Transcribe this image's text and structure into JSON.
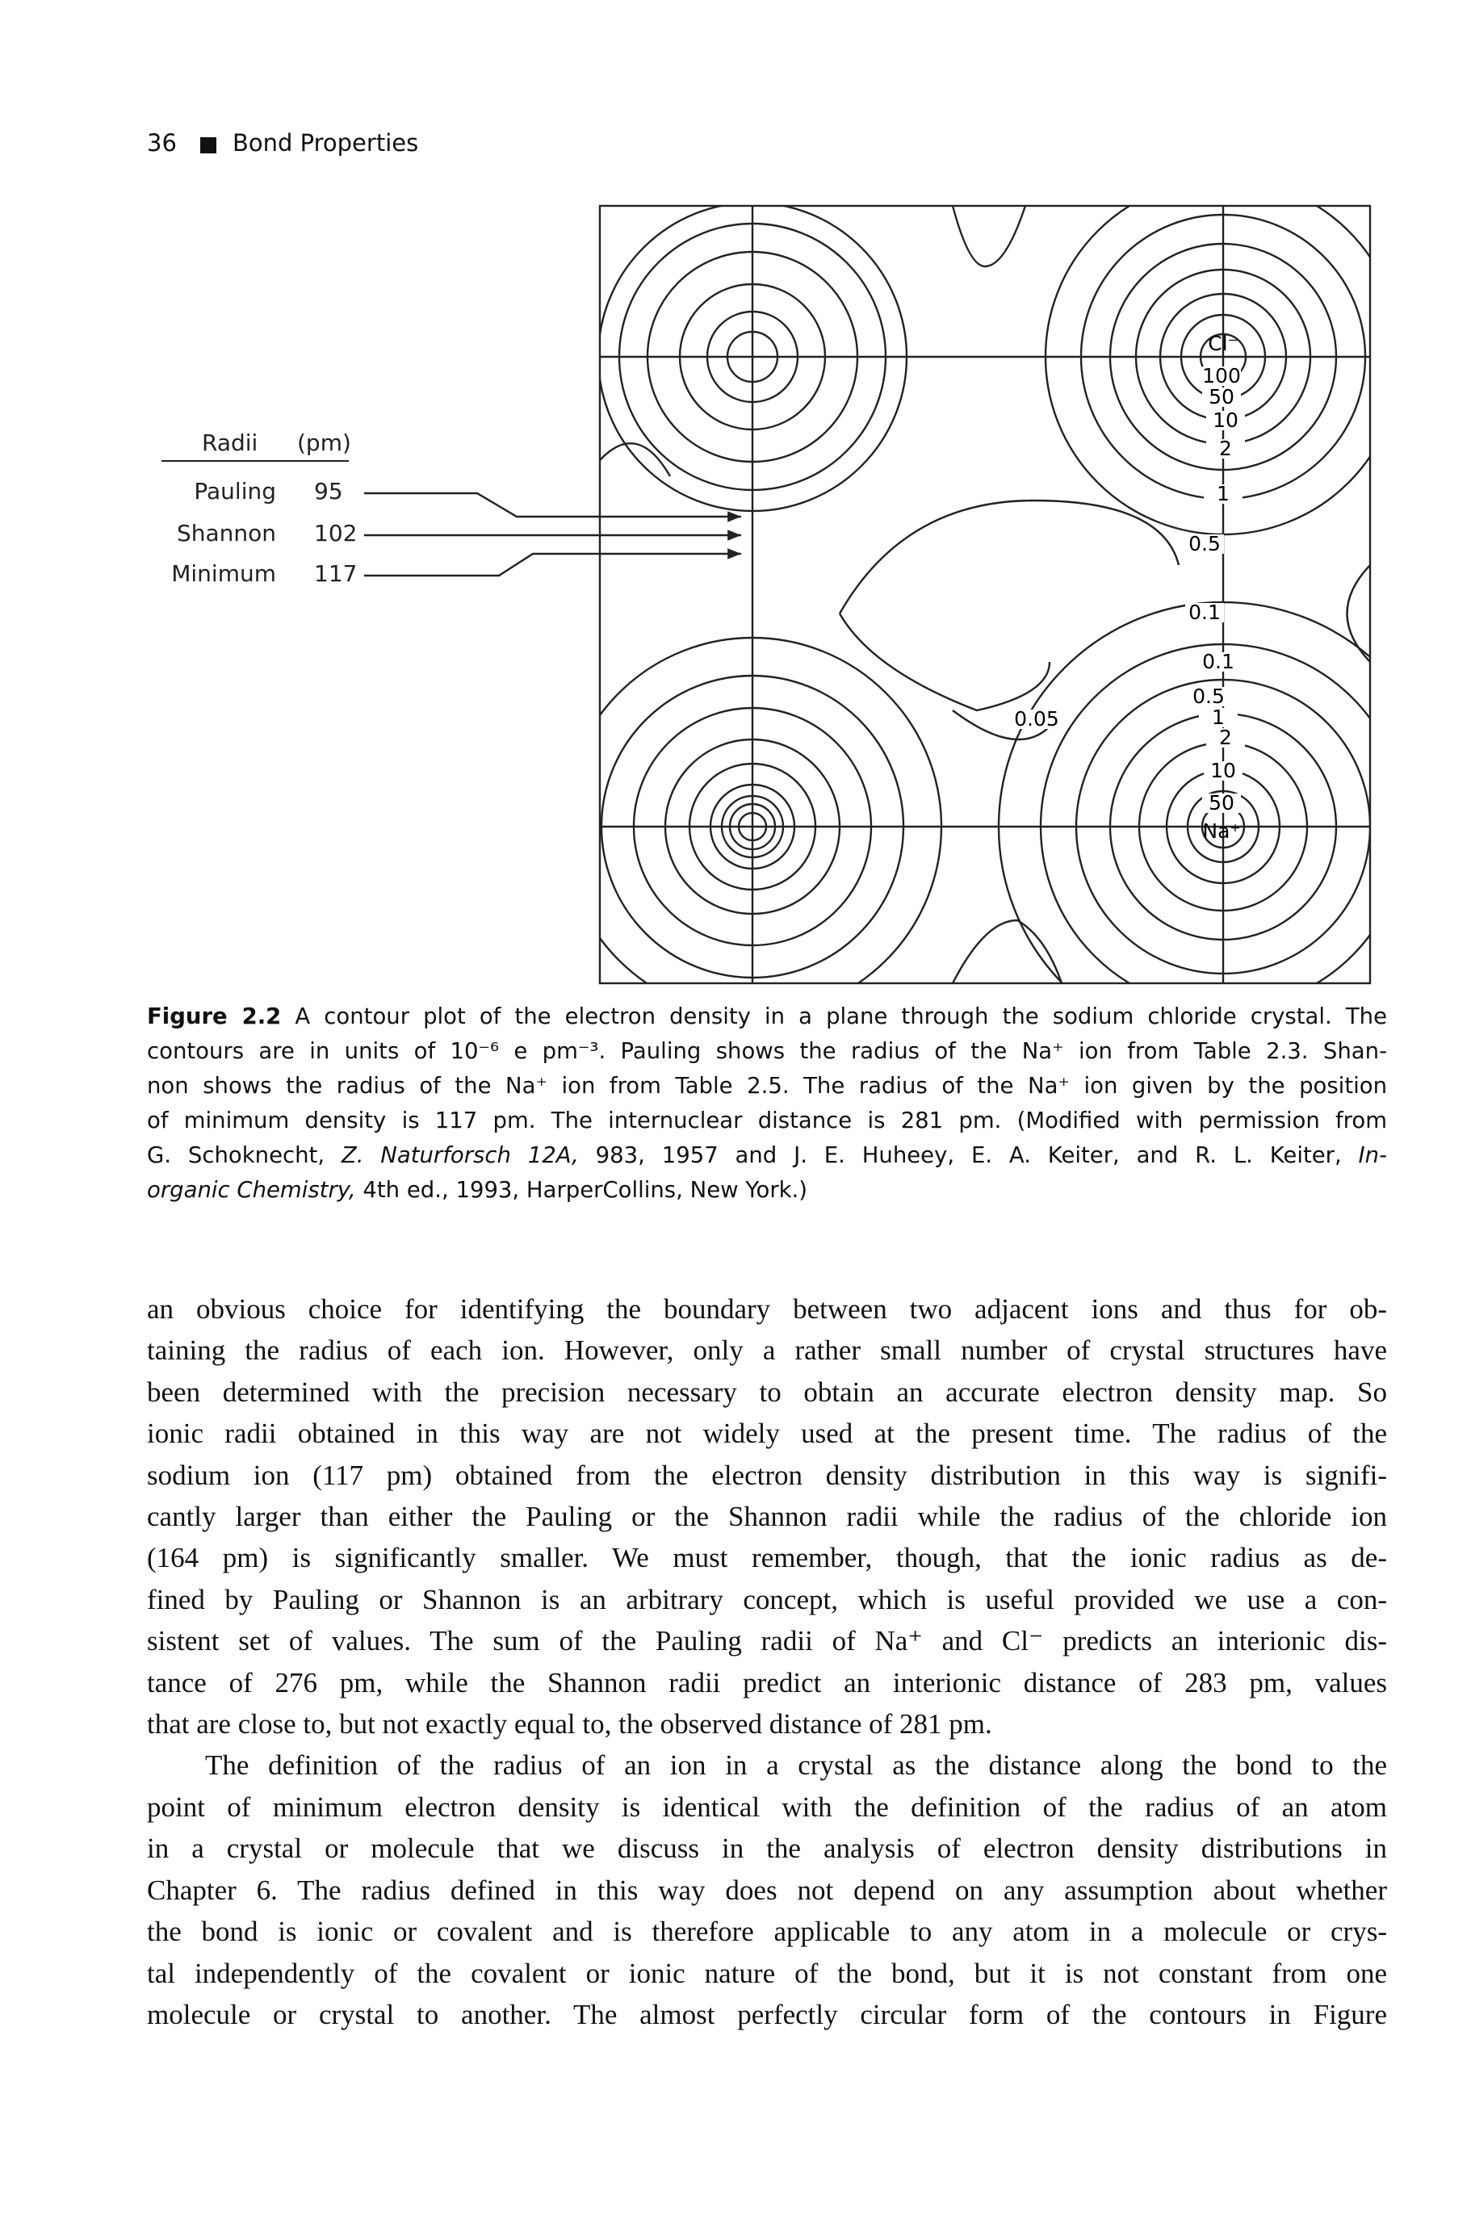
{
  "header": {
    "page_number": "36",
    "title": "Bond Properties"
  },
  "figure": {
    "table": {
      "header": [
        "Radii",
        "(pm)"
      ],
      "rows": [
        [
          "Pauling",
          "95"
        ],
        [
          "Shannon",
          "102"
        ],
        [
          "Minimum",
          "117"
        ]
      ]
    },
    "plot": {
      "ion_labels": [
        "Cl⁻",
        "Na⁺"
      ],
      "contour_labels": [
        "100",
        "50",
        "10",
        "2",
        "1",
        "0.5",
        "0.1",
        "0.1",
        "0.5",
        "1",
        "2",
        "10",
        "50",
        "0.05"
      ]
    },
    "caption": {
      "label": "Figure 2.2",
      "lines": [
        [
          {
            "text": " A contour plot of the electron density in a plane through the sodium chloride crystal. The"
          }
        ],
        [
          {
            "text": "contours are in units of 10⁻⁶ e pm⁻³. Pauling shows the radius of the Na⁺ ion from Table 2.3. Shan-"
          }
        ],
        [
          {
            "text": "non shows the radius of the Na⁺ ion from Table 2.5. The radius of the Na⁺ ion given by the position"
          }
        ],
        [
          {
            "text": "of minimum density is 117 pm. The internuclear distance is 281 pm. (Modified with permission from"
          }
        ],
        [
          {
            "text": "G. Schoknecht, "
          },
          {
            "text": "Z. Naturforsch 12A,",
            "italic": true
          },
          {
            "text": " 983, 1957 and J. E. Huheey, E. A. Keiter, and R. L. Keiter, "
          },
          {
            "text": "In-",
            "italic": true
          }
        ],
        [
          {
            "text": "organic Chemistry,",
            "italic": true
          },
          {
            "text": " 4th ed., 1993, HarperCollins, New York.)"
          }
        ]
      ]
    }
  },
  "body": {
    "paragraphs": [
      [
        "an obvious choice for identifying the boundary between two adjacent ions and thus for ob-",
        "taining the radius of each ion. However, only a rather small number of crystal structures have",
        "been determined with the precision necessary to obtain an accurate electron density map. So",
        "ionic radii obtained in this way are not widely used at the present time. The radius of the",
        "sodium ion (117 pm) obtained from the electron density distribution in this way is signifi-",
        "cantly larger than either the Pauling or the Shannon radii while the radius of the chloride ion",
        "(164 pm) is significantly smaller. We must remember, though, that the ionic radius as de-",
        "fined by Pauling or Shannon is an arbitrary concept, which is useful provided we use a con-",
        "sistent set of values. The sum of the Pauling radii of Na⁺ and Cl⁻ predicts an interionic dis-",
        "tance of 276 pm, while the Shannon radii predict an interionic distance of 283 pm, values",
        "that are close to, but not exactly equal to, the observed distance of 281 pm."
      ],
      [
        "The definition of the radius of an ion in a crystal as the distance along the bond to the",
        "point of minimum electron density is identical with the definition of the radius of an atom",
        "in a crystal or molecule that we discuss in the analysis of electron density distributions in",
        "Chapter 6. The radius defined in this way does not depend on any assumption about whether",
        "the bond is ionic or covalent and is therefore applicable to any atom in a molecule or crys-",
        "tal independently of the covalent or ionic nature of the bond, but it is not constant from one",
        "molecule or crystal to another. The almost perfectly circular form of the contours in Figure"
      ]
    ]
  }
}
